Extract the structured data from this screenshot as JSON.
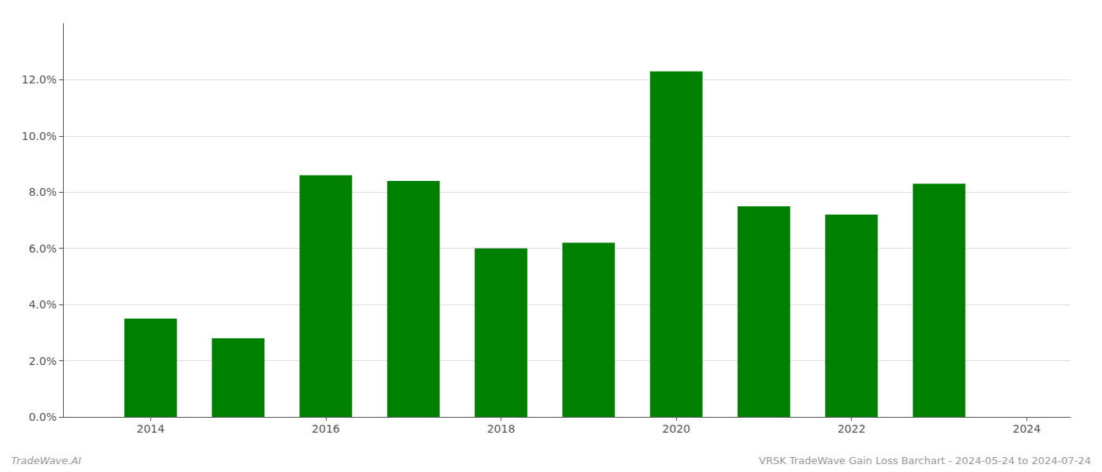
{
  "chart_data": {
    "type": "bar",
    "x": [
      2014,
      2015,
      2016,
      2017,
      2018,
      2019,
      2020,
      2021,
      2022,
      2023
    ],
    "values": [
      0.035,
      0.028,
      0.086,
      0.084,
      0.06,
      0.062,
      0.123,
      0.075,
      0.072,
      0.083
    ],
    "color": "#008000",
    "xlim": [
      2013.0,
      2024.5
    ],
    "xticks": [
      2014,
      2016,
      2018,
      2020,
      2022,
      2024
    ],
    "ylim": [
      0,
      0.14
    ],
    "yticks": [
      {
        "value": 0.0,
        "label": "0.0%"
      },
      {
        "value": 0.02,
        "label": "2.0%"
      },
      {
        "value": 0.04,
        "label": "4.0%"
      },
      {
        "value": 0.06,
        "label": "6.0%"
      },
      {
        "value": 0.08,
        "label": "8.0%"
      },
      {
        "value": 0.1,
        "label": "10.0%"
      },
      {
        "value": 0.12,
        "label": "12.0%"
      }
    ],
    "grid": true,
    "annotations": [
      "TradeWave.AI",
      "VRSK TradeWave Gain Loss Barchart - 2024-05-24 to 2024-07-24"
    ]
  }
}
